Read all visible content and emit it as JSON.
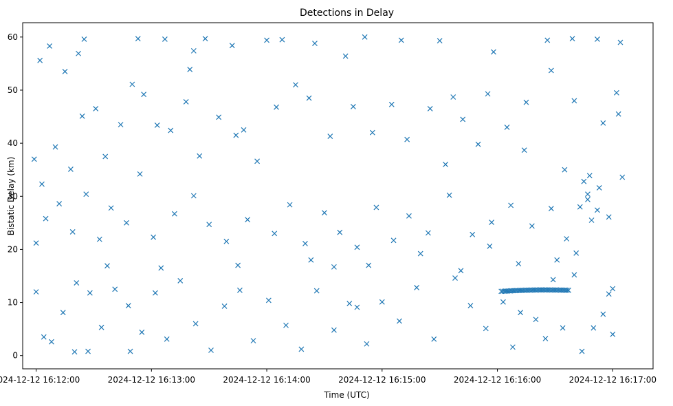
{
  "chart_data": {
    "type": "scatter",
    "title": "Detections in Delay",
    "xlabel": "Time (UTC)",
    "ylabel": "Bistatic Delay (km)",
    "marker": "x",
    "color": "#1f77b4",
    "grid": false,
    "xlim": [
      "2024-12-12 16:11:53",
      "2024-12-12 16:17:21"
    ],
    "ylim": [
      -2.5,
      62.7
    ],
    "x_ticks": [
      "2024-12-12 16:12:00",
      "2024-12-12 16:13:00",
      "2024-12-12 16:14:00",
      "2024-12-12 16:15:00",
      "2024-12-12 16:16:00",
      "2024-12-12 16:17:00"
    ],
    "y_ticks": [
      0,
      10,
      20,
      30,
      40,
      50,
      60
    ],
    "track": {
      "start": [
        "2024-12-12 16:16:02",
        12.1
      ],
      "end": [
        "2024-12-12 16:16:37",
        12.3
      ]
    },
    "points": [
      [
        "2024-12-12 16:12:02",
        55.6
      ],
      [
        "2024-12-12 16:12:07",
        58.3
      ],
      [
        "2024-12-12 16:12:15",
        53.5
      ],
      [
        "2024-12-12 16:12:22",
        56.9
      ],
      [
        "2024-12-12 16:12:25",
        59.6
      ],
      [
        "2024-12-12 16:12:50",
        51.1
      ],
      [
        "2024-12-12 16:12:53",
        59.7
      ],
      [
        "2024-12-12 16:13:07",
        59.6
      ],
      [
        "2024-12-12 16:13:20",
        53.9
      ],
      [
        "2024-12-12 16:13:28",
        59.7
      ],
      [
        "2024-12-12 16:13:42",
        58.4
      ],
      [
        "2024-12-12 16:14:00",
        59.4
      ],
      [
        "2024-12-12 16:14:08",
        59.5
      ],
      [
        "2024-12-12 16:14:25",
        58.8
      ],
      [
        "2024-12-12 16:14:41",
        56.4
      ],
      [
        "2024-12-12 16:14:51",
        60.0
      ],
      [
        "2024-12-12 16:15:10",
        59.4
      ],
      [
        "2024-12-12 16:15:30",
        59.3
      ],
      [
        "2024-12-12 16:15:58",
        57.2
      ],
      [
        "2024-12-12 16:16:26",
        59.4
      ],
      [
        "2024-12-12 16:16:39",
        59.7
      ],
      [
        "2024-12-12 16:16:52",
        59.6
      ],
      [
        "2024-12-12 16:17:04",
        59.0
      ],
      [
        "2024-12-12 16:11:59",
        37.0
      ],
      [
        "2024-12-12 16:12:03",
        32.3
      ],
      [
        "2024-12-12 16:12:10",
        39.3
      ],
      [
        "2024-12-12 16:12:18",
        35.1
      ],
      [
        "2024-12-12 16:12:24",
        45.1
      ],
      [
        "2024-12-12 16:12:31",
        46.5
      ],
      [
        "2024-12-12 16:12:36",
        37.5
      ],
      [
        "2024-12-12 16:12:44",
        43.5
      ],
      [
        "2024-12-12 16:12:56",
        49.2
      ],
      [
        "2024-12-12 16:13:03",
        43.4
      ],
      [
        "2024-12-12 16:13:10",
        42.4
      ],
      [
        "2024-12-12 16:13:18",
        47.8
      ],
      [
        "2024-12-12 16:13:25",
        37.6
      ],
      [
        "2024-12-12 16:13:35",
        44.9
      ],
      [
        "2024-12-12 16:13:44",
        41.5
      ],
      [
        "2024-12-12 16:13:48",
        42.5
      ],
      [
        "2024-12-12 16:13:55",
        36.6
      ],
      [
        "2024-12-12 16:14:05",
        46.8
      ],
      [
        "2024-12-12 16:14:15",
        51.0
      ],
      [
        "2024-12-12 16:14:22",
        48.5
      ],
      [
        "2024-12-12 16:14:33",
        41.3
      ],
      [
        "2024-12-12 16:14:45",
        46.9
      ],
      [
        "2024-12-12 16:14:55",
        42.0
      ],
      [
        "2024-12-12 16:15:05",
        47.3
      ],
      [
        "2024-12-12 16:15:13",
        40.7
      ],
      [
        "2024-12-12 16:15:25",
        46.5
      ],
      [
        "2024-12-12 16:15:37",
        48.7
      ],
      [
        "2024-12-12 16:15:42",
        44.5
      ],
      [
        "2024-12-12 16:15:50",
        39.8
      ],
      [
        "2024-12-12 16:15:55",
        49.3
      ],
      [
        "2024-12-12 16:16:05",
        43.0
      ],
      [
        "2024-12-12 16:16:15",
        47.7
      ],
      [
        "2024-12-12 16:16:28",
        53.7
      ],
      [
        "2024-12-12 16:16:40",
        48.0
      ],
      [
        "2024-12-12 16:16:55",
        43.8
      ],
      [
        "2024-12-12 16:17:03",
        45.5
      ],
      [
        "2024-12-12 16:17:02",
        49.5
      ],
      [
        "2024-12-12 16:12:00",
        21.2
      ],
      [
        "2024-12-12 16:12:05",
        25.8
      ],
      [
        "2024-12-12 16:12:12",
        28.6
      ],
      [
        "2024-12-12 16:12:19",
        23.3
      ],
      [
        "2024-12-12 16:12:26",
        30.4
      ],
      [
        "2024-12-12 16:12:33",
        21.9
      ],
      [
        "2024-12-12 16:12:39",
        27.8
      ],
      [
        "2024-12-12 16:12:47",
        25.0
      ],
      [
        "2024-12-12 16:12:54",
        34.2
      ],
      [
        "2024-12-12 16:13:01",
        22.3
      ],
      [
        "2024-12-12 16:13:12",
        26.7
      ],
      [
        "2024-12-12 16:13:22",
        30.1
      ],
      [
        "2024-12-12 16:13:30",
        24.7
      ],
      [
        "2024-12-12 16:13:39",
        21.5
      ],
      [
        "2024-12-12 16:13:50",
        25.6
      ],
      [
        "2024-12-12 16:14:04",
        23.0
      ],
      [
        "2024-12-12 16:14:12",
        28.4
      ],
      [
        "2024-12-12 16:14:20",
        21.1
      ],
      [
        "2024-12-12 16:14:30",
        26.9
      ],
      [
        "2024-12-12 16:14:38",
        23.2
      ],
      [
        "2024-12-12 16:14:47",
        20.4
      ],
      [
        "2024-12-12 16:14:57",
        27.9
      ],
      [
        "2024-12-12 16:15:06",
        21.7
      ],
      [
        "2024-12-12 16:15:14",
        26.3
      ],
      [
        "2024-12-12 16:15:24",
        23.1
      ],
      [
        "2024-12-12 16:15:35",
        30.2
      ],
      [
        "2024-12-12 16:15:47",
        22.8
      ],
      [
        "2024-12-12 16:15:57",
        25.1
      ],
      [
        "2024-12-12 16:16:07",
        28.3
      ],
      [
        "2024-12-12 16:16:18",
        24.4
      ],
      [
        "2024-12-12 16:16:28",
        27.7
      ],
      [
        "2024-12-12 16:16:36",
        22.0
      ],
      [
        "2024-12-12 16:16:47",
        30.4
      ],
      [
        "2024-12-12 16:16:52",
        27.4
      ],
      [
        "2024-12-12 16:16:58",
        26.1
      ],
      [
        "2024-12-12 16:17:05",
        33.6
      ],
      [
        "2024-12-12 16:16:45",
        32.8
      ],
      [
        "2024-12-12 16:16:48",
        33.9
      ],
      [
        "2024-12-12 16:12:00",
        12.0
      ],
      [
        "2024-12-12 16:12:04",
        3.5
      ],
      [
        "2024-12-12 16:12:08",
        2.6
      ],
      [
        "2024-12-12 16:12:14",
        8.1
      ],
      [
        "2024-12-12 16:12:21",
        13.7
      ],
      [
        "2024-12-12 16:12:28",
        11.8
      ],
      [
        "2024-12-12 16:12:34",
        5.3
      ],
      [
        "2024-12-12 16:12:41",
        12.5
      ],
      [
        "2024-12-12 16:12:48",
        9.4
      ],
      [
        "2024-12-12 16:12:55",
        4.4
      ],
      [
        "2024-12-12 16:13:02",
        11.8
      ],
      [
        "2024-12-12 16:13:08",
        3.1
      ],
      [
        "2024-12-12 16:13:15",
        14.1
      ],
      [
        "2024-12-12 16:13:23",
        6.0
      ],
      [
        "2024-12-12 16:13:31",
        1.0
      ],
      [
        "2024-12-12 16:13:38",
        9.3
      ],
      [
        "2024-12-12 16:13:46",
        12.3
      ],
      [
        "2024-12-12 16:13:53",
        2.8
      ],
      [
        "2024-12-12 16:14:01",
        10.4
      ],
      [
        "2024-12-12 16:14:10",
        5.7
      ],
      [
        "2024-12-12 16:14:18",
        1.2
      ],
      [
        "2024-12-12 16:14:26",
        12.2
      ],
      [
        "2024-12-12 16:14:35",
        4.8
      ],
      [
        "2024-12-12 16:14:43",
        9.8
      ],
      [
        "2024-12-12 16:14:47",
        9.1
      ],
      [
        "2024-12-12 16:14:52",
        2.2
      ],
      [
        "2024-12-12 16:15:00",
        10.1
      ],
      [
        "2024-12-12 16:15:09",
        6.5
      ],
      [
        "2024-12-12 16:15:18",
        12.8
      ],
      [
        "2024-12-12 16:15:27",
        3.1
      ],
      [
        "2024-12-12 16:15:38",
        14.6
      ],
      [
        "2024-12-12 16:15:46",
        9.4
      ],
      [
        "2024-12-12 16:15:54",
        5.1
      ],
      [
        "2024-12-12 16:16:03",
        10.1
      ],
      [
        "2024-12-12 16:16:08",
        1.6
      ],
      [
        "2024-12-12 16:16:12",
        8.1
      ],
      [
        "2024-12-12 16:16:20",
        6.8
      ],
      [
        "2024-12-12 16:16:25",
        3.2
      ],
      [
        "2024-12-12 16:16:34",
        5.2
      ],
      [
        "2024-12-12 16:16:40",
        15.2
      ],
      [
        "2024-12-12 16:16:44",
        0.8
      ],
      [
        "2024-12-12 16:16:50",
        5.2
      ],
      [
        "2024-12-12 16:16:58",
        11.6
      ],
      [
        "2024-12-12 16:17:00",
        4.0
      ],
      [
        "2024-12-12 16:17:00",
        12.6
      ],
      [
        "2024-12-12 16:16:55",
        7.8
      ],
      [
        "2024-12-12 16:12:20",
        0.7
      ],
      [
        "2024-12-12 16:12:27",
        0.8
      ],
      [
        "2024-12-12 16:12:49",
        0.8
      ],
      [
        "2024-12-12 16:13:22",
        57.4
      ],
      [
        "2024-12-12 16:14:23",
        18.0
      ],
      [
        "2024-12-12 16:15:56",
        20.6
      ],
      [
        "2024-12-12 16:16:29",
        14.3
      ],
      [
        "2024-12-12 16:16:31",
        18.0
      ],
      [
        "2024-12-12 16:15:33",
        36.0
      ],
      [
        "2024-12-12 16:16:14",
        38.7
      ],
      [
        "2024-12-12 16:13:45",
        17.0
      ],
      [
        "2024-12-12 16:14:53",
        17.0
      ],
      [
        "2024-12-12 16:15:41",
        16.0
      ],
      [
        "2024-12-12 16:13:05",
        16.5
      ],
      [
        "2024-12-12 16:12:37",
        16.9
      ],
      [
        "2024-12-12 16:14:35",
        16.7
      ],
      [
        "2024-12-12 16:15:20",
        19.2
      ],
      [
        "2024-12-12 16:16:11",
        17.3
      ],
      [
        "2024-12-12 16:16:41",
        19.3
      ],
      [
        "2024-12-12 16:16:35",
        35.0
      ],
      [
        "2024-12-12 16:16:43",
        28.0
      ],
      [
        "2024-12-12 16:16:47",
        29.4
      ],
      [
        "2024-12-12 16:16:49",
        25.5
      ],
      [
        "2024-12-12 16:16:53",
        31.6
      ]
    ]
  }
}
